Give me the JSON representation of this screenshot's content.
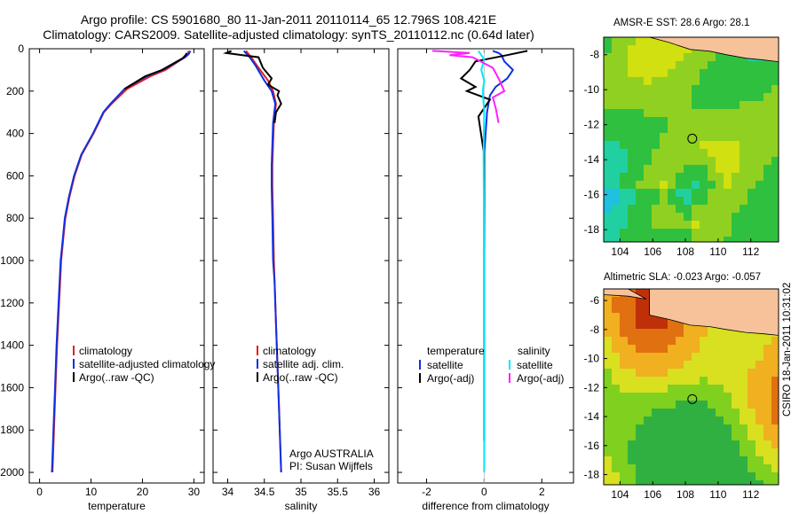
{
  "header": {
    "title_line1": "Argo profile: CS 5901680_80 11-Jan-2011 20110114_65 12.796S 108.421E",
    "title_line2": "Climatology: CARS2009. Satellite-adjusted climatology: synTS_20110112.nc (0.64d later)"
  },
  "colors": {
    "climatology": "#e02020",
    "satellite": "#1030e0",
    "argo": "#000000",
    "sat_salinity": "#00e8ff",
    "argo_salinity": "#ff20ff",
    "land": "#f7c29a"
  },
  "chart_data": [
    {
      "type": "line",
      "panel": "temperature",
      "xlabel": "temperature",
      "ylabel": "",
      "xlim": [
        -2,
        32
      ],
      "ylim": [
        2050,
        0
      ],
      "xticks": [
        0,
        10,
        20,
        30
      ],
      "yticks": [
        0,
        200,
        400,
        600,
        800,
        1000,
        1200,
        1400,
        1600,
        1800,
        2000
      ],
      "legend": [
        "climatology",
        "satellite-adjusted climatology",
        "Argo(..raw -QC)"
      ],
      "legend_position": "lower-right",
      "series": [
        {
          "name": "climatology",
          "color": "#e02020",
          "x": [
            29.0,
            28.8,
            28.2,
            24.5,
            21.5,
            17.0,
            14.0,
            12.5,
            10.5,
            8.2,
            6.8,
            5.8,
            5.0,
            4.6,
            4.2,
            3.8,
            3.4,
            3.1,
            2.8,
            2.5
          ],
          "y": [
            10,
            25,
            40,
            100,
            130,
            190,
            260,
            300,
            400,
            500,
            600,
            700,
            800,
            900,
            1000,
            1200,
            1400,
            1600,
            1800,
            2000
          ]
        },
        {
          "name": "satellite-adjusted climatology",
          "color": "#1030e0",
          "x": [
            29.3,
            29.0,
            28.3,
            24.0,
            20.8,
            16.5,
            13.8,
            12.4,
            10.4,
            8.1,
            6.7,
            5.7,
            4.9,
            4.5,
            4.1,
            3.7,
            3.3,
            3.0,
            2.7,
            2.4
          ],
          "y": [
            10,
            25,
            40,
            100,
            130,
            190,
            260,
            300,
            400,
            500,
            600,
            700,
            800,
            900,
            1000,
            1200,
            1400,
            1600,
            1800,
            2000
          ]
        },
        {
          "name": "Argo(..raw -QC)",
          "color": "#000000",
          "x": [
            28.6,
            28.4,
            27.8,
            23.8,
            20.5,
            16.5
          ],
          "y": [
            20,
            30,
            45,
            100,
            130,
            190
          ]
        }
      ]
    },
    {
      "type": "line",
      "panel": "salinity",
      "xlabel": "salinity",
      "xlim": [
        33.8,
        36.2
      ],
      "ylim": [
        2050,
        0
      ],
      "xticks": [
        34,
        34.5,
        35,
        35.5,
        36
      ],
      "legend": [
        "climatology",
        "satellite adj. clim.",
        "Argo(..raw -QC)"
      ],
      "legend_position": "lower-right",
      "annotation": [
        "Argo AUSTRALIA",
        "PI: Susan Wijffels"
      ],
      "series": [
        {
          "name": "climatology",
          "color": "#e02020",
          "x": [
            34.25,
            34.32,
            34.4,
            34.55,
            34.62,
            34.66,
            34.63,
            34.62,
            34.61,
            34.61,
            34.62,
            34.63,
            34.64,
            34.66,
            34.68,
            34.7,
            34.72,
            34.73
          ],
          "y": [
            10,
            40,
            80,
            150,
            200,
            260,
            350,
            450,
            550,
            650,
            800,
            1000,
            1100,
            1300,
            1500,
            1700,
            1900,
            2000
          ]
        },
        {
          "name": "satellite adj. clim.",
          "color": "#1030e0",
          "x": [
            34.22,
            34.3,
            34.38,
            34.5,
            34.6,
            34.65,
            34.62,
            34.61,
            34.6,
            34.6,
            34.61,
            34.62,
            34.64,
            34.66,
            34.68,
            34.7,
            34.72,
            34.73
          ],
          "y": [
            10,
            40,
            80,
            150,
            200,
            260,
            350,
            450,
            550,
            650,
            800,
            1000,
            1100,
            1300,
            1500,
            1700,
            1900,
            2000
          ]
        },
        {
          "name": "Argo(..raw -QC)",
          "color": "#000000",
          "x": [
            34.05,
            33.98,
            34.2,
            34.42,
            34.48,
            34.6,
            34.55,
            34.7,
            34.68,
            34.73,
            34.66,
            34.64
          ],
          "y": [
            10,
            20,
            30,
            40,
            90,
            140,
            170,
            200,
            220,
            260,
            300,
            350
          ]
        }
      ]
    },
    {
      "type": "line",
      "panel": "difference",
      "xlabel": "difference from climatology",
      "xlim": [
        -3,
        3.1
      ],
      "ylim": [
        2050,
        0
      ],
      "xticks": [
        -2,
        0,
        2
      ],
      "legend_left_heading": "temperature",
      "legend_right_heading": "salinity",
      "legend_left": [
        "satellite",
        "Argo(-adj)"
      ],
      "legend_right": [
        "satellite",
        "Argo(-adj)"
      ],
      "series": [
        {
          "name": "temperature satellite",
          "color": "#1030e0",
          "x": [
            0.3,
            0.5,
            0.6,
            0.7,
            1.0,
            0.8,
            0.4,
            0.2,
            0.1,
            0.0,
            0.0,
            0.0
          ],
          "y": [
            10,
            20,
            30,
            60,
            100,
            140,
            180,
            220,
            300,
            500,
            800,
            1850
          ]
        },
        {
          "name": "temperature Argo(-adj)",
          "color": "#000000",
          "x": [
            1.5,
            0.8,
            -0.3,
            -0.5,
            -0.8,
            -0.3,
            -0.6,
            0.2,
            -0.2,
            0.0,
            0.0,
            0.0
          ],
          "y": [
            10,
            30,
            60,
            100,
            140,
            180,
            200,
            240,
            320,
            500,
            900,
            1850
          ]
        },
        {
          "name": "salinity satellite",
          "color": "#00e8ff",
          "x": [
            -0.2,
            0.0,
            -0.1,
            0.0,
            -0.05,
            0.0,
            -0.02,
            0.0,
            0.0
          ],
          "y": [
            10,
            50,
            100,
            150,
            200,
            300,
            500,
            1000,
            2000
          ]
        },
        {
          "name": "salinity Argo(-adj)",
          "color": "#ff20ff",
          "x": [
            -1.8,
            -0.5,
            -1.2,
            -0.4,
            0.3,
            0.5,
            0.7,
            0.3,
            0.4,
            0.5
          ],
          "y": [
            10,
            20,
            30,
            40,
            90,
            140,
            200,
            230,
            280,
            350
          ]
        }
      ]
    },
    {
      "type": "heatmap",
      "panel": "sst-map",
      "title": "AMSR-E SST: 28.6 Argo: 28.1",
      "xlim": [
        103,
        113.7
      ],
      "ylim": [
        -18.7,
        -7
      ],
      "xticks": [
        104,
        106,
        108,
        110,
        112
      ],
      "yticks": [
        -8,
        -10,
        -12,
        -14,
        -16,
        -18
      ],
      "marker": {
        "lon": 108.421,
        "lat": -12.796
      }
    },
    {
      "type": "heatmap",
      "panel": "sla-map",
      "title": "Altimetric SLA: -0.023 Argo: -0.057",
      "xlim": [
        103,
        113.7
      ],
      "ylim": [
        -18.7,
        -5.2
      ],
      "xticks": [
        104,
        106,
        108,
        110,
        112
      ],
      "yticks": [
        -6,
        -8,
        -10,
        -12,
        -14,
        -16,
        -18
      ],
      "marker": {
        "lon": 108.421,
        "lat": -12.796
      }
    }
  ],
  "footer": {
    "stamp": "CSIRO 18-Jan-2011 10:31:02"
  }
}
